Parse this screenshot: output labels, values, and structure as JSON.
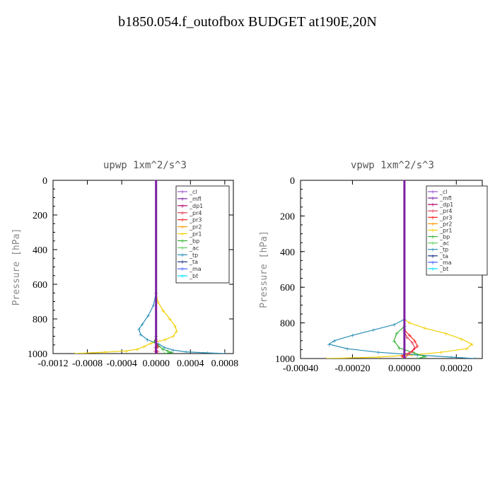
{
  "title": "b1850.054.f_outofbox  BUDGET at190E,20N",
  "colors": {
    "_cl": "#9b59d0",
    "_mfl": "#7b1fa2",
    "_dp1": "#b0006a",
    "_pr4": "#e0405a",
    "_pr3": "#ff2020",
    "_pr2": "#ff9a00",
    "_pr1": "#f0d000",
    "_bp": "#30b030",
    "_ac": "#60d060",
    "_tp": "#2a8fb8",
    "_ta": "#203080",
    "_ma": "#4060ff",
    "_bt": "#00e0ff"
  },
  "chart_data": [
    {
      "type": "line",
      "title": "upwp  1xm^2/s^3",
      "ylabel": "Pressure [hPa]",
      "xlabel": "",
      "xlim": [
        -0.0012,
        0.0009
      ],
      "ylim": [
        1000,
        0
      ],
      "xticks": [
        -0.0012,
        -0.0008,
        -0.0004,
        0.0,
        0.0004,
        0.0008
      ],
      "xtick_labels": [
        "-0.0012",
        "-0.0008",
        "-0.0004",
        "0.0000",
        "0.0004",
        "0.0008"
      ],
      "yticks": [
        0,
        200,
        400,
        600,
        800,
        1000
      ],
      "ytick_labels": [
        "0",
        "200",
        "400",
        "600",
        "800",
        "1000"
      ],
      "legend": [
        "_cl",
        "_mfl",
        "_dp1",
        "_pr4",
        "_pr3",
        "_pr2",
        "_pr1",
        "_bp",
        "_ac",
        "_tp",
        "_ta",
        "_ma",
        "_bt"
      ],
      "legend_position": "top-right",
      "series": [
        {
          "name": "_pr1",
          "x": [
            0.0,
            0.0,
            2e-05,
            8e-05,
            0.00016,
            0.00022,
            0.00024,
            0.0002,
            0.0001,
            -6e-05,
            -0.00014,
            -0.00022,
            -0.00035,
            -0.0006,
            -0.00095
          ],
          "y": [
            0,
            650,
            700,
            750,
            800,
            840,
            870,
            900,
            920,
            940,
            960,
            975,
            985,
            992,
            1000
          ]
        },
        {
          "name": "_tp",
          "x": [
            0.0,
            0.0,
            -3e-05,
            -9e-05,
            -0.00016,
            -0.0002,
            -0.00018,
            -0.0001,
            3e-05,
            0.0001,
            0.0002,
            0.00035,
            0.0006,
            0.0008
          ],
          "y": [
            0,
            650,
            720,
            780,
            830,
            860,
            890,
            920,
            945,
            965,
            980,
            990,
            996,
            1000
          ]
        },
        {
          "name": "_bp",
          "x": [
            0.0,
            0.0,
            -2e-05,
            3e-05,
            8e-05,
            0.00014,
            0.00018,
            0.0001
          ],
          "y": [
            0,
            900,
            930,
            955,
            975,
            985,
            993,
            1000
          ]
        },
        {
          "name": "_pr3",
          "x": [
            0.0,
            0.0,
            2e-05,
            -1e-05,
            0.0
          ],
          "y": [
            0,
            920,
            960,
            985,
            1000
          ]
        },
        {
          "name": "_pr4",
          "x": [
            0.0,
            0.0,
            -1e-05,
            2e-05,
            0.0
          ],
          "y": [
            0,
            930,
            965,
            988,
            1000
          ]
        },
        {
          "name": "_mfl",
          "x": [
            0.0,
            0.0
          ],
          "y": [
            0,
            1000
          ]
        }
      ]
    },
    {
      "type": "line",
      "title": "vpwp  1xm^2/s^3",
      "ylabel": "Pressure [hPa]",
      "xlabel": "",
      "xlim": [
        -0.0004,
        0.0003
      ],
      "ylim": [
        1000,
        0
      ],
      "xticks": [
        -0.0004,
        -0.0002,
        0.0,
        0.0002
      ],
      "xtick_labels": [
        "-0.00040",
        "-0.00020",
        "0.00000",
        "0.00020"
      ],
      "yticks": [
        0,
        200,
        400,
        600,
        800,
        1000
      ],
      "ytick_labels": [
        "0",
        "200",
        "400",
        "600",
        "800",
        "1000"
      ],
      "legend": [
        "_cl",
        "_mfl",
        "_dp1",
        "_pr4",
        "_pr3",
        "_pr2",
        "_pr1",
        "_bp",
        "_ac",
        "_tp",
        "_ta",
        "_ma",
        "_bt"
      ],
      "legend_position": "top-right",
      "series": [
        {
          "name": "_pr1",
          "x": [
            0.0,
            0.0,
            2e-05,
            8e-05,
            0.00016,
            0.00022,
            0.00026,
            0.00024,
            0.00014,
            3e-05,
            -0.0001,
            -0.0003
          ],
          "y": [
            0,
            780,
            800,
            830,
            860,
            890,
            920,
            945,
            965,
            980,
            992,
            1000
          ]
        },
        {
          "name": "_tp",
          "x": [
            0.0,
            0.0,
            -4e-05,
            -0.00012,
            -0.0002,
            -0.00027,
            -0.00029,
            -0.00022,
            -0.0001,
            5e-05,
            0.00018,
            0.00027
          ],
          "y": [
            0,
            780,
            810,
            840,
            870,
            900,
            920,
            945,
            965,
            980,
            992,
            1000
          ]
        },
        {
          "name": "_bp",
          "x": [
            0.0,
            0.0,
            -3e-05,
            -4e-05,
            -2e-05,
            4e-05,
            8e-05,
            5e-05
          ],
          "y": [
            0,
            820,
            860,
            900,
            940,
            970,
            990,
            1000
          ]
        },
        {
          "name": "_pr3",
          "x": [
            0.0,
            0.0,
            2e-05,
            4e-05,
            5e-05,
            3e-05,
            -1e-05,
            0.0
          ],
          "y": [
            0,
            840,
            870,
            900,
            930,
            960,
            985,
            1000
          ]
        },
        {
          "name": "_pr4",
          "x": [
            0.0,
            0.0,
            1e-05,
            3e-05,
            4e-05,
            2e-05,
            0.0
          ],
          "y": [
            0,
            850,
            880,
            910,
            940,
            970,
            1000
          ]
        },
        {
          "name": "_pr2",
          "x": [
            0.0,
            0.0
          ],
          "y": [
            0,
            1000
          ]
        },
        {
          "name": "_mfl",
          "x": [
            0.0,
            0.0
          ],
          "y": [
            0,
            1000
          ]
        }
      ]
    }
  ]
}
